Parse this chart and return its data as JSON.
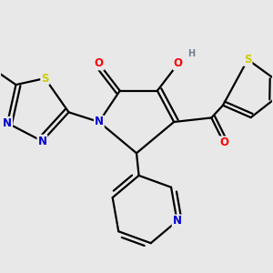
{
  "background_color": "#e8e8e8",
  "atom_colors": {
    "C": "#000000",
    "N": "#0000cc",
    "O": "#ff0000",
    "S": "#cccc00",
    "H": "#708090"
  },
  "bond_color": "#000000",
  "bond_width": 1.6,
  "figsize": [
    3.0,
    3.0
  ],
  "dpi": 100
}
